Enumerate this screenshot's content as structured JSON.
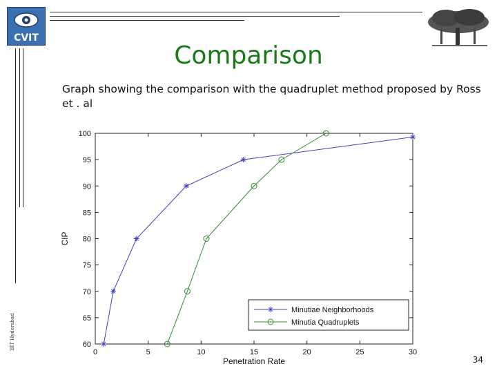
{
  "header": {
    "logo_text": "CVIT",
    "title": "Comparison",
    "subtitle": "Graph showing the comparison with the quadruplet method proposed by Ross et . al"
  },
  "footer": {
    "vertical_text": "IIIT Hyderabad",
    "page_number": "34"
  },
  "colors": {
    "title": "#1a7a1a",
    "series1": "#4040c0",
    "series2": "#2e8b2e"
  },
  "chart_data": {
    "type": "line",
    "title": "",
    "xlabel": "Penetration Rate",
    "ylabel": "CIP",
    "xlim": [
      0,
      30
    ],
    "ylim": [
      60,
      100
    ],
    "xticks": [
      0,
      5,
      10,
      15,
      20,
      25,
      30
    ],
    "yticks": [
      60,
      65,
      70,
      75,
      80,
      85,
      90,
      95,
      100
    ],
    "grid": false,
    "legend_position": "bottom-right",
    "series": [
      {
        "name": "Minutiae Neighborhoods",
        "marker": "star",
        "color": "#4040c0",
        "x": [
          0.8,
          1.7,
          3.9,
          8.6,
          14.0,
          30.0
        ],
        "y": [
          60,
          70,
          80,
          90,
          95,
          99.3
        ]
      },
      {
        "name": "Minutia Quadruplets",
        "marker": "circle",
        "color": "#2e8b2e",
        "x": [
          6.8,
          8.7,
          10.5,
          15.0,
          17.6,
          21.8
        ],
        "y": [
          60,
          70,
          80,
          90,
          95,
          100
        ]
      }
    ]
  }
}
